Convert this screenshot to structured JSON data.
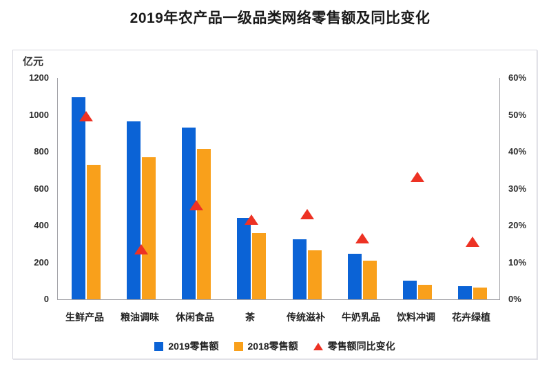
{
  "chart_data": {
    "type": "bar",
    "title": "2019年农产品一级品类网络零售额及同比变化",
    "unit_label": "亿元",
    "categories": [
      "生鲜产品",
      "粮油调味",
      "休闲食品",
      "茶",
      "传统滋补",
      "牛奶乳品",
      "饮料冲调",
      "花卉绿植"
    ],
    "series": [
      {
        "name": "2019零售额",
        "type": "bar",
        "axis": "left",
        "color": "#0b63d6",
        "values": [
          1095,
          965,
          930,
          440,
          325,
          245,
          100,
          70
        ]
      },
      {
        "name": "2018零售额",
        "type": "bar",
        "axis": "left",
        "color": "#f9a01b",
        "values": [
          730,
          770,
          815,
          360,
          265,
          210,
          78,
          62
        ]
      },
      {
        "name": "零售额同比变化",
        "type": "scatter-triangle",
        "axis": "right",
        "color": "#ed3224",
        "values": [
          49.5,
          13.5,
          25.5,
          21.5,
          23,
          16.5,
          33,
          15.5
        ]
      }
    ],
    "left_axis": {
      "min": 0,
      "max": 1200,
      "step": 200,
      "ticks": [
        "0",
        "200",
        "400",
        "600",
        "800",
        "1000",
        "1200"
      ]
    },
    "right_axis": {
      "min": 0,
      "max": 60,
      "step": 10,
      "ticks": [
        "0%",
        "10%",
        "20%",
        "30%",
        "40%",
        "50%",
        "60%"
      ]
    },
    "grid": "off",
    "legend_position": "bottom"
  }
}
